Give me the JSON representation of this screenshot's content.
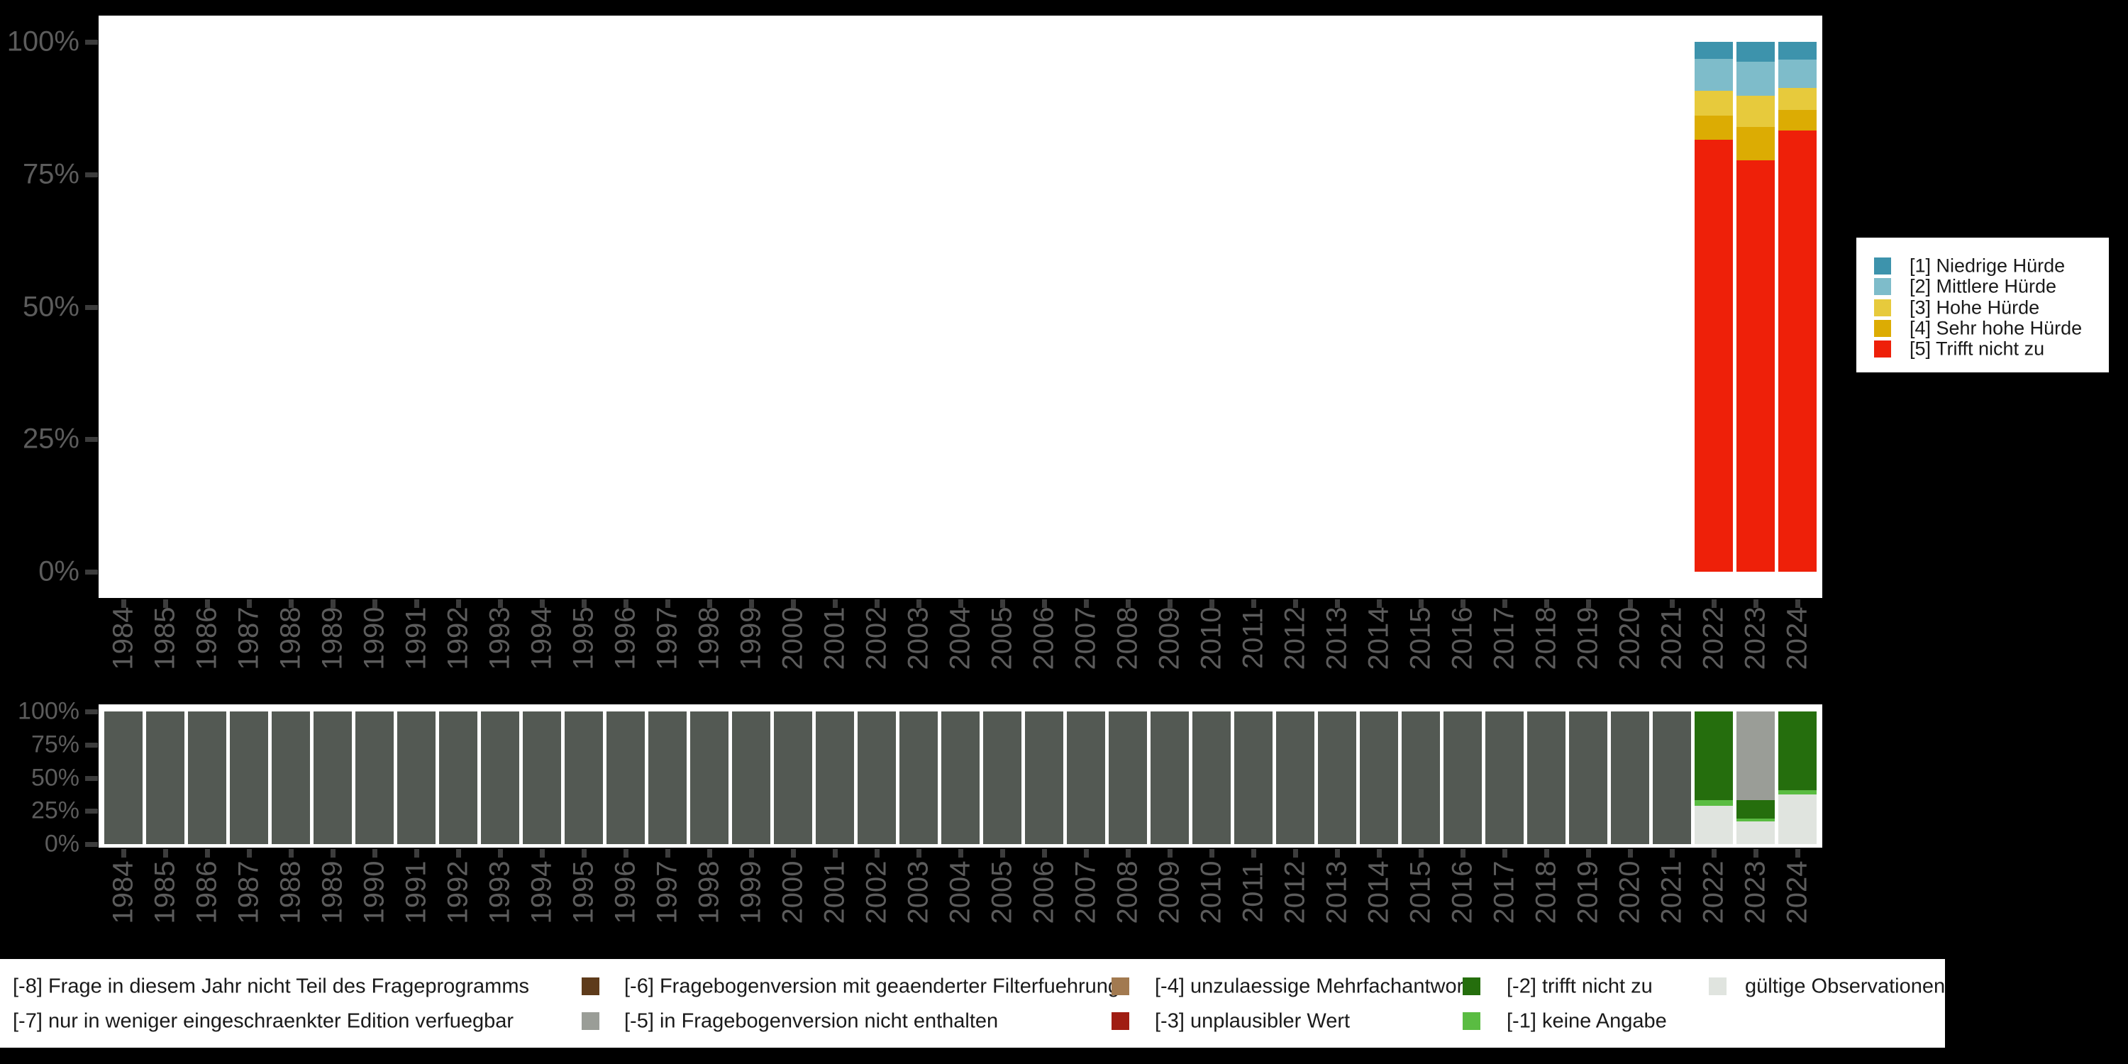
{
  "colors": {
    "background": "#000000",
    "panel": "#ffffff",
    "axis_text": "#5c5c5c",
    "tick_mark": "#3c3c3c",
    "legend_text": "#1a1a1a"
  },
  "top_legend": {
    "items": [
      {
        "label": "[1] Niedrige Hürde",
        "color": "#3d93ac"
      },
      {
        "label": "[2] Mittlere Hürde",
        "color": "#7ebcca"
      },
      {
        "label": "[3] Hohe Hürde",
        "color": "#e7ca3c"
      },
      {
        "label": "[4] Sehr hohe Hürde",
        "color": "#dcac03"
      },
      {
        "label": "[5] Trifft nicht zu",
        "color": "#ee2009"
      }
    ]
  },
  "bottom_legend": {
    "rows": [
      [
        {
          "label": "[-8] Frage in diesem Jahr nicht Teil des Frageprogramms",
          "color": null
        },
        {
          "label": "[-6] Fragebogenversion mit geaenderter Filterfuehrung",
          "color": "#5e3b1b"
        },
        {
          "label": "[-4] unzulaessige Mehrfachantwort",
          "color": "#a27a50"
        },
        {
          "label": "[-2] trifft nicht zu",
          "color": "#256e0d"
        },
        {
          "label": "gültige Observationen",
          "color": "#e0e4df"
        }
      ],
      [
        {
          "label": "[-7] nur in weniger eingeschraenkter Edition verfuegbar",
          "color": null
        },
        {
          "label": "[-5] in Fragebogenversion nicht enthalten",
          "color": "#9a9d97"
        },
        {
          "label": "[-3] unplausibler Wert",
          "color": "#a01d12"
        },
        {
          "label": "[-1] keine Angabe",
          "color": "#5abc42"
        }
      ]
    ]
  },
  "chart_data": [
    {
      "id": "answers-percent",
      "type": "bar",
      "stacked": true,
      "unit": "percent",
      "grid": false,
      "legend_position": "right",
      "ylim": [
        0,
        100
      ],
      "yticks": [
        "100%",
        "75%",
        "50%",
        "25%",
        "0%"
      ],
      "categories": [
        "1984",
        "1985",
        "1986",
        "1987",
        "1988",
        "1989",
        "1990",
        "1991",
        "1992",
        "1993",
        "1994",
        "1995",
        "1996",
        "1997",
        "1998",
        "1999",
        "2000",
        "2001",
        "2002",
        "2003",
        "2004",
        "2005",
        "2006",
        "2007",
        "2008",
        "2009",
        "2010",
        "2011",
        "2012",
        "2013",
        "2014",
        "2015",
        "2016",
        "2017",
        "2018",
        "2019",
        "2020",
        "2021",
        "2022",
        "2023",
        "2024"
      ],
      "series": [
        {
          "name": "[1] Niedrige Hürde",
          "color": "#3d93ac",
          "values": {
            "2022": 3.2,
            "2023": 3.7,
            "2024": 3.3
          }
        },
        {
          "name": "[2] Mittlere Hürde",
          "color": "#7ebcca",
          "values": {
            "2022": 6.1,
            "2023": 6.5,
            "2024": 5.4
          }
        },
        {
          "name": "[3] Hohe Hürde",
          "color": "#e7ca3c",
          "values": {
            "2022": 4.6,
            "2023": 5.9,
            "2024": 4.2
          }
        },
        {
          "name": "[4] Sehr hohe Hürde",
          "color": "#dcac03",
          "values": {
            "2022": 4.6,
            "2023": 6.3,
            "2024": 3.8
          }
        },
        {
          "name": "[5] Trifft nicht zu",
          "color": "#ee2009",
          "values": {
            "2022": 81.5,
            "2023": 77.6,
            "2024": 83.3
          }
        }
      ]
    },
    {
      "id": "missings-percent",
      "type": "bar",
      "stacked": true,
      "unit": "percent",
      "grid": false,
      "legend_position": "bottom",
      "ylim": [
        0,
        100
      ],
      "yticks": [
        "100%",
        "75%",
        "50%",
        "25%",
        "0%"
      ],
      "categories": [
        "1984",
        "1985",
        "1986",
        "1987",
        "1988",
        "1989",
        "1990",
        "1991",
        "1992",
        "1993",
        "1994",
        "1995",
        "1996",
        "1997",
        "1998",
        "1999",
        "2000",
        "2001",
        "2002",
        "2003",
        "2004",
        "2005",
        "2006",
        "2007",
        "2008",
        "2009",
        "2010",
        "2011",
        "2012",
        "2013",
        "2014",
        "2015",
        "2016",
        "2017",
        "2018",
        "2019",
        "2020",
        "2021",
        "2022",
        "2023",
        "2024"
      ],
      "series": [
        {
          "name": "[-8] Frage in diesem Jahr nicht Teil des Frageprogramms",
          "color": "#535953",
          "values": {
            "1984": 100,
            "1985": 100,
            "1986": 100,
            "1987": 100,
            "1988": 100,
            "1989": 100,
            "1990": 100,
            "1991": 100,
            "1992": 100,
            "1993": 100,
            "1994": 100,
            "1995": 100,
            "1996": 100,
            "1997": 100,
            "1998": 100,
            "1999": 100,
            "2000": 100,
            "2001": 100,
            "2002": 100,
            "2003": 100,
            "2004": 100,
            "2005": 100,
            "2006": 100,
            "2007": 100,
            "2008": 100,
            "2009": 100,
            "2010": 100,
            "2011": 100,
            "2012": 100,
            "2013": 100,
            "2014": 100,
            "2015": 100,
            "2016": 100,
            "2017": 100,
            "2018": 100,
            "2019": 100,
            "2020": 100,
            "2021": 100
          }
        },
        {
          "name": "[-5] in Fragebogenversion nicht enthalten",
          "color": "#9a9d97",
          "values": {
            "2023": 66.8
          }
        },
        {
          "name": "[-2] trifft nicht zu",
          "color": "#256e0d",
          "values": {
            "2022": 66.8,
            "2023": 13.7,
            "2024": 59.6
          }
        },
        {
          "name": "[-1] keine Angabe",
          "color": "#5abc42",
          "values": {
            "2022": 4.4,
            "2023": 2.4,
            "2024": 3.0
          }
        },
        {
          "name": "gültige Observationen",
          "color": "#e0e4df",
          "values": {
            "2022": 28.8,
            "2023": 17.1,
            "2024": 37.4
          }
        }
      ]
    }
  ]
}
